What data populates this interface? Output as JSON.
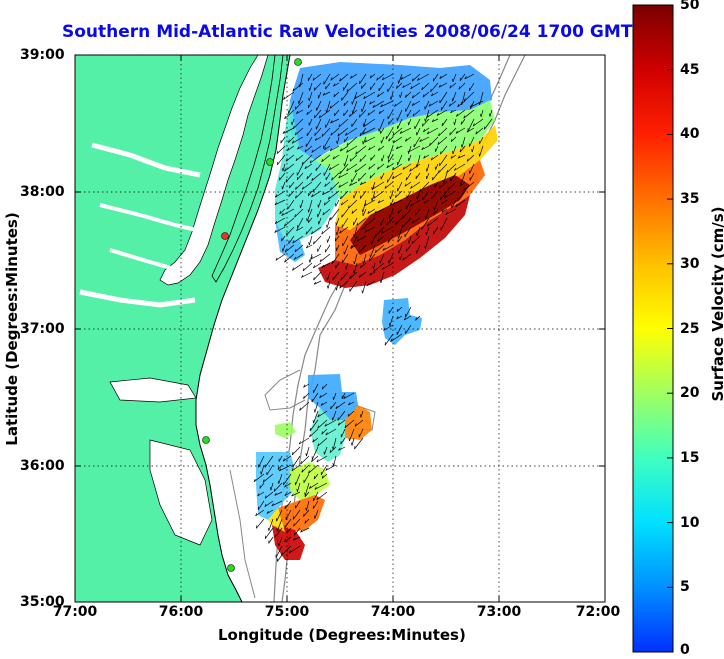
{
  "figure": {
    "title": "Southern Mid-Atlantic Raw Velocities 2008/06/24 1700 GMT",
    "xlabel": "Longitude (Degrees:Minutes)",
    "ylabel": "Latitude (Degrees:Minutes)",
    "colorbar_label": "Surface Velocity (cm/s)"
  },
  "axes": {
    "x_ticks": [
      "77:00",
      "76:00",
      "75:00",
      "74:00",
      "73:00",
      "72:00"
    ],
    "y_ticks": [
      "39:00",
      "38:00",
      "37:00",
      "36:00",
      "35:00"
    ],
    "xlim": [
      -77,
      -72
    ],
    "ylim": [
      35,
      39
    ],
    "grid": true
  },
  "colorbar": {
    "ticks": [
      "50",
      "45",
      "40",
      "35",
      "30",
      "25",
      "20",
      "15",
      "10",
      "5",
      "0"
    ],
    "range": [
      0,
      50
    ],
    "colormap": [
      "#0000ff",
      "#00a0ff",
      "#00ffff",
      "#60ffa0",
      "#c0ff40",
      "#ffff00",
      "#ffa000",
      "#ff4000",
      "#e00000",
      "#800000"
    ]
  },
  "colors": {
    "land": "#55f0a8",
    "ocean": "#ffffff",
    "title": "#0a0ae6",
    "station_green": "#22dd22",
    "station_red": "#ee3322"
  }
}
